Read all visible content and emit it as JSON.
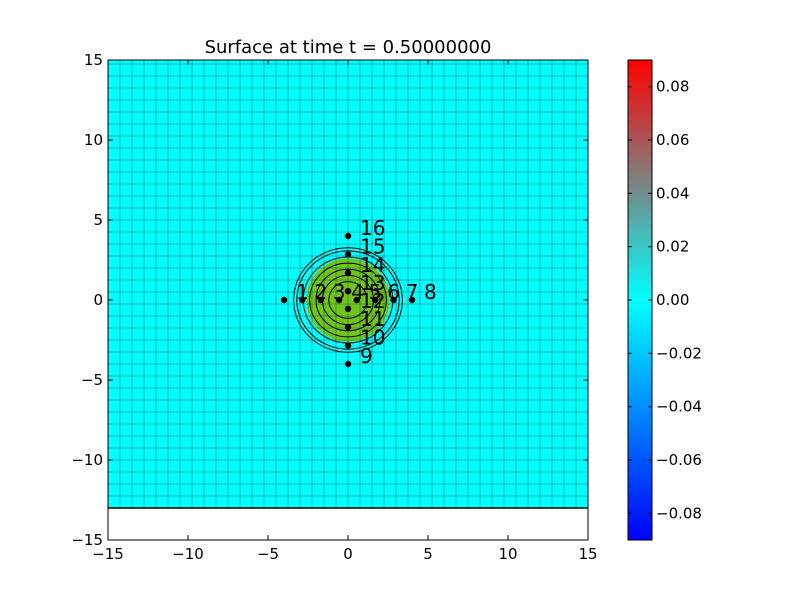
{
  "chart_data": {
    "type": "heatmap",
    "title": "Surface at time t =      0.50000000",
    "xlim": [
      -15,
      15
    ],
    "ylim": [
      -15,
      15
    ],
    "x_ticks": [
      -15,
      -10,
      -5,
      0,
      5,
      10,
      15
    ],
    "y_ticks": [
      -15,
      -10,
      -5,
      0,
      5,
      10,
      15
    ],
    "x_tick_labels": [
      "−15",
      "−10",
      "−5",
      "0",
      "5",
      "10",
      "15"
    ],
    "y_tick_labels": [
      "−15",
      "−10",
      "−5",
      "0",
      "5",
      "10",
      "15"
    ],
    "grid": true,
    "grid_spacing": 0.75,
    "domain_ymin": -13,
    "colormap": {
      "low": "#0000ff",
      "mid_low": "#00ffff",
      "mid": "#00ffff",
      "high_mid": "#808080",
      "high": "#ff0000"
    },
    "background_color": "#00ffff",
    "bump": {
      "center": [
        0,
        0
      ],
      "radius": 2.6,
      "color": "#7fbf00"
    },
    "contour_radii": [
      1.2,
      1.6,
      2.0,
      2.4,
      2.8,
      3.2,
      3.4
    ],
    "colorbar": {
      "range": [
        -0.09,
        0.09
      ],
      "ticks": [
        -0.08,
        -0.06,
        -0.04,
        -0.02,
        0.0,
        0.02,
        0.04,
        0.06,
        0.08
      ],
      "tick_labels": [
        "−0.08",
        "−0.06",
        "−0.04",
        "−0.02",
        "0.00",
        "0.02",
        "0.04",
        "0.06",
        "0.08"
      ]
    },
    "gauges": [
      {
        "id": "1",
        "x": -4.0,
        "y": 0.0
      },
      {
        "id": "2",
        "x": -2.85,
        "y": 0.0
      },
      {
        "id": "3",
        "x": -1.7,
        "y": 0.0
      },
      {
        "id": "4",
        "x": -0.55,
        "y": 0.0
      },
      {
        "id": "5",
        "x": 0.55,
        "y": 0.0
      },
      {
        "id": "6",
        "x": 1.7,
        "y": 0.0
      },
      {
        "id": "7",
        "x": 2.85,
        "y": 0.0
      },
      {
        "id": "8",
        "x": 4.0,
        "y": 0.0
      },
      {
        "id": "9",
        "x": 0.0,
        "y": -4.0
      },
      {
        "id": "10",
        "x": 0.0,
        "y": -2.85
      },
      {
        "id": "11",
        "x": 0.0,
        "y": -1.7
      },
      {
        "id": "12",
        "x": 0.0,
        "y": -0.55
      },
      {
        "id": "13",
        "x": 0.0,
        "y": 0.55
      },
      {
        "id": "14",
        "x": 0.0,
        "y": 1.7
      },
      {
        "id": "15",
        "x": 0.0,
        "y": 2.85
      },
      {
        "id": "16",
        "x": 0.0,
        "y": 4.0
      }
    ]
  }
}
